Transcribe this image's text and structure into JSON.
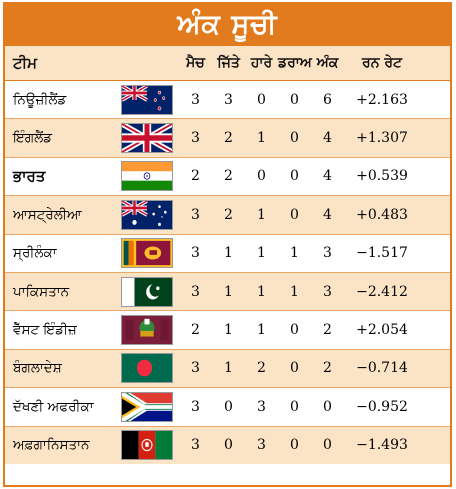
{
  "title": "ਅੰਕ ਸੂਚੀ",
  "headers": {
    "team": "ਟੀਮ",
    "played": "ਮੈਚ",
    "won": "ਜਿੱਤੇ",
    "lost": "ਹਾਰੇ",
    "draw": "ਡਰਾਅ",
    "points": "ਅੰਕ",
    "nrr": "ਰਨ ਰੇਟ"
  },
  "rows": [
    {
      "team": "ਨਿਊਜ਼ੀਲੈਂਡ",
      "flag": "new-zealand-flag",
      "played": "3",
      "won": "3",
      "lost": "0",
      "draw": "0",
      "points": "6",
      "nrr": "+2.163"
    },
    {
      "team": "ਇੰਗਲੈਂਡ",
      "flag": "united-kingdom-flag",
      "played": "3",
      "won": "2",
      "lost": "1",
      "draw": "0",
      "points": "4",
      "nrr": "+1.307"
    },
    {
      "team": "ਭਾਰਤ",
      "flag": "india-flag",
      "played": "2",
      "won": "2",
      "lost": "0",
      "draw": "0",
      "points": "4",
      "nrr": "+0.539"
    },
    {
      "team": "ਆਸਟ੍ਰੇਲੀਆ",
      "flag": "australia-flag",
      "played": "3",
      "won": "2",
      "lost": "1",
      "draw": "0",
      "points": "4",
      "nrr": "+0.483"
    },
    {
      "team": "ਸ੍ਰੀਲੰਕਾ",
      "flag": "sri-lanka-flag",
      "played": "3",
      "won": "1",
      "lost": "1",
      "draw": "1",
      "points": "3",
      "nrr": "−1.517"
    },
    {
      "team": "ਪਾਕਿਸਤਾਨ",
      "flag": "pakistan-flag",
      "played": "3",
      "won": "1",
      "lost": "1",
      "draw": "1",
      "points": "3",
      "nrr": "−2.412"
    },
    {
      "team": "ਵੈੱਸਟ ਇੰਡੀਜ਼",
      "flag": "west-indies-flag",
      "played": "2",
      "won": "1",
      "lost": "1",
      "draw": "0",
      "points": "2",
      "nrr": "+2.054"
    },
    {
      "team": "ਬੰਗਲਾਦੇਸ਼",
      "flag": "bangladesh-flag",
      "played": "3",
      "won": "1",
      "lost": "2",
      "draw": "0",
      "points": "2",
      "nrr": "−0.714"
    },
    {
      "team": "ਦੱਖਣੀ ਅਫਰੀਕਾ",
      "flag": "south-africa-flag",
      "played": "3",
      "won": "0",
      "lost": "3",
      "draw": "0",
      "points": "0",
      "nrr": "−0.952"
    },
    {
      "team": "ਅਫ਼ਗਾਨਿਸਤਾਨ",
      "flag": "afghanistan-flag",
      "played": "3",
      "won": "0",
      "lost": "3",
      "draw": "0",
      "points": "0",
      "nrr": "−1.493"
    }
  ],
  "colors": {
    "accent": "#e27a1e",
    "row_alt": "#fbe3c6",
    "border": "#e8a868"
  }
}
